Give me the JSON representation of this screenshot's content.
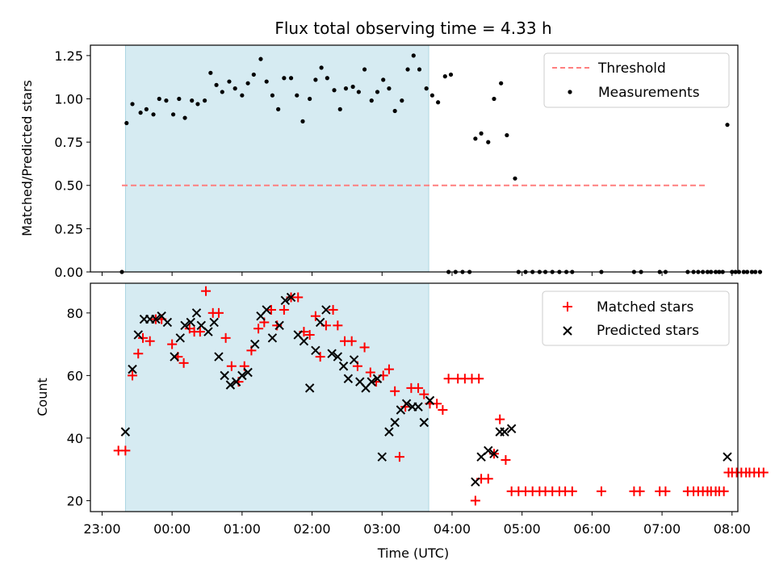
{
  "chart_data": [
    {
      "type": "scatter",
      "title": "Flux total observing time = 4.33 h",
      "xlabel": "",
      "ylabel": "Matched/Predicted stars",
      "ylim": [
        0,
        1.31
      ],
      "yticks": [
        "0.00",
        "0.25",
        "0.50",
        "0.75",
        "1.00",
        "1.25"
      ],
      "ytick_values": [
        0,
        0.25,
        0.5,
        0.75,
        1.0,
        1.25
      ],
      "xlim": [
        "22:50",
        "08:05"
      ],
      "shaded_range": [
        "23:20",
        "03:40"
      ],
      "grid": false,
      "legend_position": "top-right",
      "legend": [
        "Threshold",
        "Measurements"
      ],
      "threshold": {
        "name": "Threshold",
        "value": 0.5,
        "x_range": [
          "23:17",
          "07:38"
        ],
        "color": "#ff7f7f"
      },
      "series": [
        {
          "name": "Measurements",
          "color": "#000000",
          "points": [
            [
              "23:17",
              0.0
            ],
            [
              "23:21",
              0.86
            ],
            [
              "23:26",
              0.97
            ],
            [
              "23:33",
              0.92
            ],
            [
              "23:38",
              0.94
            ],
            [
              "23:44",
              0.91
            ],
            [
              "23:49",
              1.0
            ],
            [
              "23:55",
              0.99
            ],
            [
              "00:01",
              0.91
            ],
            [
              "00:06",
              1.0
            ],
            [
              "00:11",
              0.89
            ],
            [
              "00:17",
              0.99
            ],
            [
              "00:22",
              0.97
            ],
            [
              "00:28",
              0.99
            ],
            [
              "00:33",
              1.15
            ],
            [
              "00:38",
              1.08
            ],
            [
              "00:43",
              1.04
            ],
            [
              "00:49",
              1.1
            ],
            [
              "00:54",
              1.06
            ],
            [
              "01:00",
              1.02
            ],
            [
              "01:05",
              1.09
            ],
            [
              "01:10",
              1.14
            ],
            [
              "01:16",
              1.23
            ],
            [
              "01:21",
              1.1
            ],
            [
              "01:26",
              1.02
            ],
            [
              "01:31",
              0.94
            ],
            [
              "01:36",
              1.12
            ],
            [
              "01:42",
              1.12
            ],
            [
              "01:47",
              1.02
            ],
            [
              "01:52",
              0.87
            ],
            [
              "01:58",
              1.0
            ],
            [
              "02:03",
              1.11
            ],
            [
              "02:08",
              1.18
            ],
            [
              "02:13",
              1.12
            ],
            [
              "02:19",
              1.05
            ],
            [
              "02:24",
              0.94
            ],
            [
              "02:29",
              1.06
            ],
            [
              "02:35",
              1.07
            ],
            [
              "02:40",
              1.04
            ],
            [
              "02:45",
              1.17
            ],
            [
              "02:51",
              0.99
            ],
            [
              "02:56",
              1.04
            ],
            [
              "03:01",
              1.11
            ],
            [
              "03:06",
              1.06
            ],
            [
              "03:11",
              0.93
            ],
            [
              "03:17",
              0.99
            ],
            [
              "03:22",
              1.17
            ],
            [
              "03:27",
              1.25
            ],
            [
              "03:32",
              1.17
            ],
            [
              "03:38",
              1.06
            ],
            [
              "03:43",
              1.02
            ],
            [
              "03:48",
              0.98
            ],
            [
              "03:54",
              1.13
            ],
            [
              "03:59",
              1.14
            ],
            [
              "03:57",
              0.0
            ],
            [
              "04:03",
              0.0
            ],
            [
              "04:09",
              0.0
            ],
            [
              "04:15",
              0.0
            ],
            [
              "04:20",
              0.77
            ],
            [
              "04:25",
              0.8
            ],
            [
              "04:31",
              0.75
            ],
            [
              "04:36",
              1.0
            ],
            [
              "04:42",
              1.09
            ],
            [
              "04:47",
              0.79
            ],
            [
              "04:54",
              0.54
            ],
            [
              "04:57",
              0.0
            ],
            [
              "05:03",
              0.0
            ],
            [
              "05:09",
              0.0
            ],
            [
              "05:15",
              0.0
            ],
            [
              "05:20",
              0.0
            ],
            [
              "05:26",
              0.0
            ],
            [
              "05:32",
              0.0
            ],
            [
              "05:38",
              0.0
            ],
            [
              "05:43",
              0.0
            ],
            [
              "06:08",
              0.0
            ],
            [
              "06:36",
              0.0
            ],
            [
              "06:42",
              0.0
            ],
            [
              "06:58",
              0.0
            ],
            [
              "07:03",
              0.0
            ],
            [
              "07:22",
              0.0
            ],
            [
              "07:27",
              0.0
            ],
            [
              "07:31",
              0.0
            ],
            [
              "07:35",
              0.0
            ],
            [
              "07:39",
              0.0
            ],
            [
              "07:42",
              0.0
            ],
            [
              "07:46",
              0.0
            ],
            [
              "07:49",
              0.0
            ],
            [
              "07:52",
              0.0
            ],
            [
              "07:56",
              0.85
            ],
            [
              "08:00",
              0.0
            ],
            [
              "08:03",
              0.0
            ],
            [
              "08:06",
              0.0
            ],
            [
              "08:10",
              0.0
            ],
            [
              "08:13",
              0.0
            ],
            [
              "08:17",
              0.0
            ],
            [
              "08:20",
              0.0
            ],
            [
              "08:24",
              0.0
            ]
          ]
        }
      ]
    },
    {
      "type": "scatter",
      "title": "",
      "xlabel": "Time (UTC)",
      "ylabel": "Count",
      "ylim": [
        16.5,
        89.5
      ],
      "yticks": [
        "20",
        "40",
        "60",
        "80"
      ],
      "ytick_values": [
        20,
        40,
        60,
        80
      ],
      "xlim": [
        "22:50",
        "08:05"
      ],
      "xticks": [
        "23:00",
        "00:00",
        "01:00",
        "02:00",
        "03:00",
        "04:00",
        "05:00",
        "06:00",
        "07:00",
        "08:00"
      ],
      "shaded_range": [
        "23:20",
        "03:40"
      ],
      "grid": false,
      "legend_position": "top-right",
      "legend": [
        "Matched stars",
        "Predicted stars"
      ],
      "series": [
        {
          "name": "Matched stars",
          "marker": "plus",
          "color": "#ff0000",
          "points": [
            [
              "23:14",
              36
            ],
            [
              "23:20",
              36
            ],
            [
              "23:26",
              60
            ],
            [
              "23:31",
              67
            ],
            [
              "23:35",
              72
            ],
            [
              "23:41",
              71
            ],
            [
              "23:46",
              78
            ],
            [
              "23:51",
              78
            ],
            [
              "00:00",
              70
            ],
            [
              "00:05",
              66
            ],
            [
              "00:10",
              64
            ],
            [
              "00:15",
              75
            ],
            [
              "00:19",
              74
            ],
            [
              "00:24",
              74
            ],
            [
              "00:29",
              87
            ],
            [
              "00:35",
              80
            ],
            [
              "00:40",
              80
            ],
            [
              "00:46",
              72
            ],
            [
              "00:51",
              63
            ],
            [
              "00:57",
              58
            ],
            [
              "01:02",
              63
            ],
            [
              "01:08",
              68
            ],
            [
              "01:14",
              75
            ],
            [
              "01:19",
              77
            ],
            [
              "01:25",
              81
            ],
            [
              "01:30",
              76
            ],
            [
              "01:36",
              81
            ],
            [
              "01:42",
              85
            ],
            [
              "01:48",
              85
            ],
            [
              "01:53",
              74
            ],
            [
              "01:58",
              73
            ],
            [
              "02:03",
              79
            ],
            [
              "02:07",
              66
            ],
            [
              "02:12",
              76
            ],
            [
              "02:18",
              81
            ],
            [
              "02:22",
              76
            ],
            [
              "02:28",
              71
            ],
            [
              "02:34",
              71
            ],
            [
              "02:39",
              63
            ],
            [
              "02:45",
              69
            ],
            [
              "02:50",
              61
            ],
            [
              "02:55",
              58
            ],
            [
              "03:01",
              60
            ],
            [
              "03:06",
              62
            ],
            [
              "03:11",
              55
            ],
            [
              "03:15",
              34
            ],
            [
              "03:20",
              50
            ],
            [
              "03:25",
              56
            ],
            [
              "03:31",
              56
            ],
            [
              "03:36",
              54
            ],
            [
              "03:41",
              51
            ],
            [
              "03:47",
              51
            ],
            [
              "03:52",
              49
            ],
            [
              "03:57",
              59
            ],
            [
              "04:05",
              59
            ],
            [
              "04:11",
              59
            ],
            [
              "04:17",
              59
            ],
            [
              "04:23",
              59
            ],
            [
              "04:20",
              20
            ],
            [
              "04:25",
              27
            ],
            [
              "04:31",
              27
            ],
            [
              "04:36",
              35
            ],
            [
              "04:41",
              46
            ],
            [
              "04:46",
              33
            ],
            [
              "04:51",
              23
            ],
            [
              "04:57",
              23
            ],
            [
              "05:03",
              23
            ],
            [
              "05:09",
              23
            ],
            [
              "05:15",
              23
            ],
            [
              "05:20",
              23
            ],
            [
              "05:26",
              23
            ],
            [
              "05:32",
              23
            ],
            [
              "05:37",
              23
            ],
            [
              "05:43",
              23
            ],
            [
              "06:08",
              23
            ],
            [
              "06:36",
              23
            ],
            [
              "06:41",
              23
            ],
            [
              "06:58",
              23
            ],
            [
              "07:03",
              23
            ],
            [
              "07:22",
              23
            ],
            [
              "07:27",
              23
            ],
            [
              "07:31",
              23
            ],
            [
              "07:35",
              23
            ],
            [
              "07:39",
              23
            ],
            [
              "07:42",
              23
            ],
            [
              "07:46",
              23
            ],
            [
              "07:49",
              23
            ],
            [
              "07:53",
              23
            ],
            [
              "07:57",
              29
            ],
            [
              "08:00",
              29
            ],
            [
              "08:04",
              29
            ],
            [
              "08:08",
              29
            ],
            [
              "08:12",
              29
            ],
            [
              "08:15",
              29
            ],
            [
              "08:19",
              29
            ],
            [
              "08:23",
              29
            ],
            [
              "08:27",
              29
            ]
          ]
        },
        {
          "name": "Predicted stars",
          "marker": "x",
          "color": "#000000",
          "points": [
            [
              "23:20",
              42
            ],
            [
              "23:26",
              62
            ],
            [
              "23:31",
              73
            ],
            [
              "23:36",
              78
            ],
            [
              "23:41",
              78
            ],
            [
              "23:46",
              78
            ],
            [
              "23:51",
              79
            ],
            [
              "23:56",
              77
            ],
            [
              "00:02",
              66
            ],
            [
              "00:07",
              72
            ],
            [
              "00:11",
              76
            ],
            [
              "00:16",
              77
            ],
            [
              "00:21",
              80
            ],
            [
              "00:25",
              76
            ],
            [
              "00:31",
              74
            ],
            [
              "00:36",
              77
            ],
            [
              "00:40",
              66
            ],
            [
              "00:45",
              60
            ],
            [
              "00:50",
              57
            ],
            [
              "00:55",
              58
            ],
            [
              "01:00",
              60
            ],
            [
              "01:05",
              61
            ],
            [
              "01:11",
              70
            ],
            [
              "01:16",
              79
            ],
            [
              "01:21",
              81
            ],
            [
              "01:26",
              72
            ],
            [
              "01:32",
              76
            ],
            [
              "01:37",
              84
            ],
            [
              "01:42",
              85
            ],
            [
              "01:48",
              73
            ],
            [
              "01:53",
              71
            ],
            [
              "01:58",
              56
            ],
            [
              "02:03",
              68
            ],
            [
              "02:07",
              77
            ],
            [
              "02:12",
              81
            ],
            [
              "02:17",
              67
            ],
            [
              "02:22",
              66
            ],
            [
              "02:27",
              63
            ],
            [
              "02:31",
              59
            ],
            [
              "02:36",
              65
            ],
            [
              "02:41",
              58
            ],
            [
              "02:46",
              56
            ],
            [
              "02:51",
              58
            ],
            [
              "02:56",
              59
            ],
            [
              "03:00",
              34
            ],
            [
              "03:06",
              42
            ],
            [
              "03:11",
              45
            ],
            [
              "03:16",
              49
            ],
            [
              "03:21",
              51
            ],
            [
              "03:26",
              50
            ],
            [
              "03:31",
              50
            ],
            [
              "03:36",
              45
            ],
            [
              "03:41",
              52
            ],
            [
              "04:20",
              26
            ],
            [
              "04:25",
              34
            ],
            [
              "04:31",
              36
            ],
            [
              "04:36",
              35
            ],
            [
              "04:41",
              42
            ],
            [
              "04:45",
              42
            ],
            [
              "04:51",
              43
            ],
            [
              "07:56",
              34
            ]
          ]
        }
      ]
    }
  ]
}
